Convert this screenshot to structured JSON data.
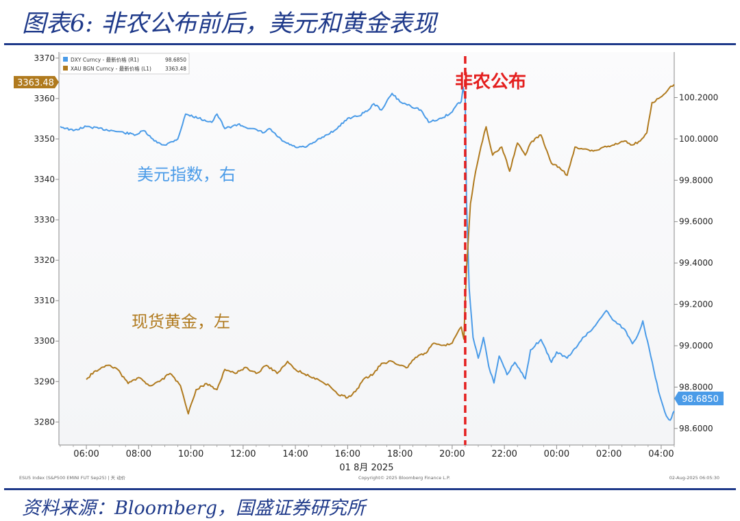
{
  "page": {
    "title": "图表6:  非农公布前后，美元和黄金表现",
    "source": "资料来源：Bloomberg，国盛证券研究所"
  },
  "chart_data": {
    "type": "line",
    "legend": [
      {
        "label": "DXY Curncy - 最新价格 (R1)",
        "value": "98.6850",
        "color": "#4a9be8"
      },
      {
        "label": "XAU BGN Curncy - 最新价格 (L1)",
        "value": "3363.48",
        "color": "#b07a1e"
      }
    ],
    "xlabel": "01 8月 2025",
    "x_ticks": [
      "06:00",
      "08:00",
      "10:00",
      "12:00",
      "14:00",
      "16:00",
      "18:00",
      "20:00",
      "22:00",
      "00:00",
      "02:00",
      "04:00"
    ],
    "x_range_hours": [
      4.95,
      28.5
    ],
    "y_left": {
      "ticks": [
        "3370",
        "3360",
        "3350",
        "3340",
        "3330",
        "3320",
        "3310",
        "3300",
        "3290",
        "3280"
      ],
      "range": [
        3274.3,
        3371.5
      ]
    },
    "y_right": {
      "ticks": [
        "100.2000",
        "100.0000",
        "99.8000",
        "99.6000",
        "99.4000",
        "99.2000",
        "99.0000",
        "98.8000",
        "98.6000"
      ],
      "range": [
        98.52,
        100.42
      ]
    },
    "last_value_labels": {
      "left": "3363.48",
      "right": "98.6850"
    },
    "annotations": {
      "event": "非农公布",
      "dxy_label": "美元指数，右",
      "gold_label": "现货黄金，左"
    },
    "event_x_hour": 20.5,
    "footer": {
      "left": "ESU5 Index (S&P500 EMINI FUT Sep25) | 天 动价",
      "center": "Copyright© 2025 Bloomberg Finance L.P.",
      "right": "02-Aug-2025 06:05:30"
    },
    "series": [
      {
        "name": "DXY Curncy",
        "axis": "right",
        "points": [
          [
            5.0,
            100.06
          ],
          [
            5.5,
            100.04
          ],
          [
            6.0,
            100.06
          ],
          [
            7.0,
            100.04
          ],
          [
            7.9,
            100.02
          ],
          [
            8.2,
            100.04
          ],
          [
            8.6,
            99.99
          ],
          [
            9.0,
            99.97
          ],
          [
            9.5,
            100.0
          ],
          [
            9.8,
            100.12
          ],
          [
            10.3,
            100.1
          ],
          [
            10.8,
            100.08
          ],
          [
            11.0,
            100.12
          ],
          [
            11.3,
            100.05
          ],
          [
            11.8,
            100.07
          ],
          [
            12.3,
            100.05
          ],
          [
            12.8,
            100.03
          ],
          [
            13.0,
            100.05
          ],
          [
            13.5,
            99.99
          ],
          [
            14.0,
            99.96
          ],
          [
            14.4,
            99.96
          ],
          [
            14.8,
            99.99
          ],
          [
            15.2,
            100.02
          ],
          [
            15.6,
            100.05
          ],
          [
            16.0,
            100.1
          ],
          [
            16.4,
            100.11
          ],
          [
            16.8,
            100.14
          ],
          [
            17.0,
            100.17
          ],
          [
            17.3,
            100.14
          ],
          [
            17.7,
            100.22
          ],
          [
            18.0,
            100.18
          ],
          [
            18.4,
            100.16
          ],
          [
            18.8,
            100.14
          ],
          [
            19.1,
            100.08
          ],
          [
            19.6,
            100.1
          ],
          [
            20.0,
            100.13
          ],
          [
            20.2,
            100.17
          ],
          [
            20.35,
            100.18
          ],
          [
            20.42,
            100.25
          ],
          [
            20.5,
            100.2
          ],
          [
            20.55,
            99.7
          ],
          [
            20.65,
            99.28
          ],
          [
            20.8,
            99.04
          ],
          [
            21.0,
            98.94
          ],
          [
            21.2,
            99.04
          ],
          [
            21.4,
            98.9
          ],
          [
            21.6,
            98.82
          ],
          [
            21.8,
            98.95
          ],
          [
            22.1,
            98.86
          ],
          [
            22.4,
            98.92
          ],
          [
            22.8,
            98.84
          ],
          [
            23.0,
            98.98
          ],
          [
            23.4,
            99.03
          ],
          [
            23.8,
            98.92
          ],
          [
            24.0,
            98.97
          ],
          [
            24.4,
            98.94
          ],
          [
            24.8,
            99.0
          ],
          [
            25.0,
            99.04
          ],
          [
            25.3,
            99.07
          ],
          [
            25.6,
            99.12
          ],
          [
            25.9,
            99.17
          ],
          [
            26.2,
            99.12
          ],
          [
            26.6,
            99.08
          ],
          [
            26.9,
            99.01
          ],
          [
            27.1,
            99.05
          ],
          [
            27.3,
            99.12
          ],
          [
            27.6,
            98.95
          ],
          [
            27.9,
            98.78
          ],
          [
            28.2,
            98.66
          ],
          [
            28.35,
            98.64
          ],
          [
            28.5,
            98.685
          ]
        ]
      },
      {
        "name": "XAU BGN Curncy",
        "axis": "left",
        "points": [
          [
            6.0,
            3290.5
          ],
          [
            6.3,
            3292.5
          ],
          [
            6.8,
            3294.0
          ],
          [
            7.2,
            3293.0
          ],
          [
            7.6,
            3289.5
          ],
          [
            8.0,
            3291.0
          ],
          [
            8.4,
            3289.0
          ],
          [
            8.8,
            3290.0
          ],
          [
            9.2,
            3292.0
          ],
          [
            9.6,
            3289.0
          ],
          [
            9.9,
            3282.0
          ],
          [
            10.2,
            3288.0
          ],
          [
            10.6,
            3289.5
          ],
          [
            11.0,
            3288.0
          ],
          [
            11.3,
            3293.0
          ],
          [
            11.7,
            3292.0
          ],
          [
            12.1,
            3293.5
          ],
          [
            12.5,
            3292.0
          ],
          [
            12.9,
            3294.0
          ],
          [
            13.3,
            3292.0
          ],
          [
            13.7,
            3295.0
          ],
          [
            14.0,
            3293.0
          ],
          [
            14.3,
            3292.0
          ],
          [
            14.7,
            3291.0
          ],
          [
            15.0,
            3290.0
          ],
          [
            15.3,
            3289.0
          ],
          [
            15.6,
            3287.0
          ],
          [
            16.0,
            3286.0
          ],
          [
            16.3,
            3287.5
          ],
          [
            16.6,
            3290.5
          ],
          [
            17.0,
            3292.0
          ],
          [
            17.3,
            3294.5
          ],
          [
            17.7,
            3295.0
          ],
          [
            18.0,
            3294.0
          ],
          [
            18.3,
            3293.5
          ],
          [
            18.6,
            3296.0
          ],
          [
            19.0,
            3297.0
          ],
          [
            19.3,
            3299.5
          ],
          [
            19.7,
            3299.0
          ],
          [
            20.0,
            3299.5
          ],
          [
            20.2,
            3302.0
          ],
          [
            20.35,
            3303.5
          ],
          [
            20.45,
            3300.5
          ],
          [
            20.55,
            3318.0
          ],
          [
            20.7,
            3334.0
          ],
          [
            20.9,
            3342.0
          ],
          [
            21.1,
            3348.0
          ],
          [
            21.3,
            3353.0
          ],
          [
            21.55,
            3346.0
          ],
          [
            21.9,
            3348.0
          ],
          [
            22.2,
            3342.0
          ],
          [
            22.5,
            3349.0
          ],
          [
            22.8,
            3346.0
          ],
          [
            23.0,
            3349.0
          ],
          [
            23.4,
            3351.0
          ],
          [
            23.8,
            3344.0
          ],
          [
            24.1,
            3343.0
          ],
          [
            24.4,
            3341.0
          ],
          [
            24.7,
            3348.0
          ],
          [
            25.0,
            3347.5
          ],
          [
            25.4,
            3347.0
          ],
          [
            25.8,
            3348.0
          ],
          [
            26.2,
            3348.5
          ],
          [
            26.6,
            3349.5
          ],
          [
            26.9,
            3348.5
          ],
          [
            27.2,
            3349.5
          ],
          [
            27.45,
            3351.5
          ],
          [
            27.65,
            3359.0
          ],
          [
            27.9,
            3360.0
          ],
          [
            28.1,
            3361.0
          ],
          [
            28.3,
            3362.5
          ],
          [
            28.5,
            3363.48
          ]
        ]
      }
    ]
  }
}
